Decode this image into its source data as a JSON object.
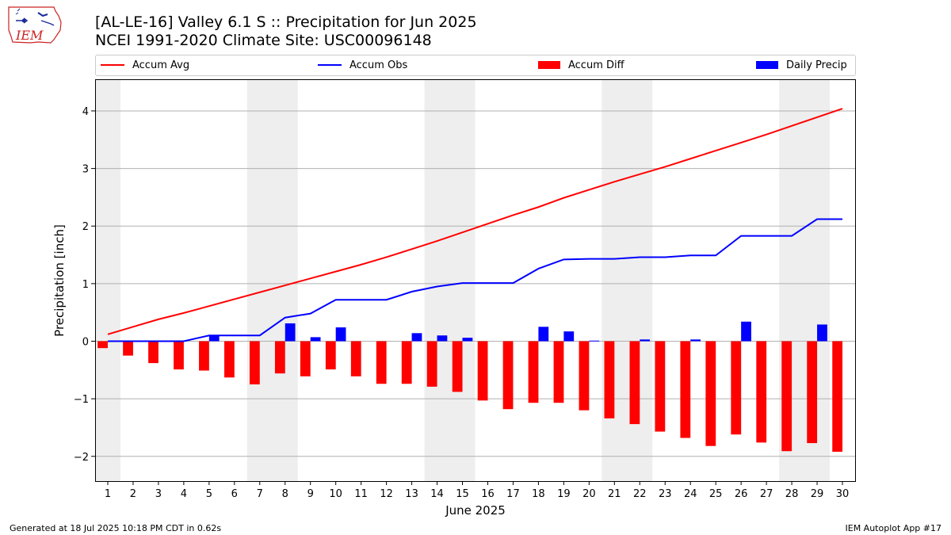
{
  "header": {
    "title_line1": "[AL-LE-16] Valley 6.1 S :: Precipitation for Jun 2025",
    "title_line2": "NCEI 1991-2020 Climate Site: USC00096148",
    "logo_text": "IEM"
  },
  "footer": {
    "left": "Generated at 18 Jul 2025 10:18 PM CDT in 0.62s",
    "right": "IEM Autoplot App #17"
  },
  "legend": [
    {
      "label": "Accum Avg",
      "kind": "line",
      "color": "#ff0000"
    },
    {
      "label": "Accum Obs",
      "kind": "line",
      "color": "#0000ff"
    },
    {
      "label": "Accum Diff",
      "kind": "bar",
      "color": "#ff0000"
    },
    {
      "label": "Daily Precip",
      "kind": "bar",
      "color": "#0000ff"
    }
  ],
  "chart_data": {
    "type": "bar",
    "xlabel": "June 2025",
    "ylabel": "Precipitation [inch]",
    "x": [
      1,
      2,
      3,
      4,
      5,
      6,
      7,
      8,
      9,
      10,
      11,
      12,
      13,
      14,
      15,
      16,
      17,
      18,
      19,
      20,
      21,
      22,
      23,
      24,
      25,
      26,
      27,
      28,
      29,
      30
    ],
    "xlim": [
      0.5,
      30.5
    ],
    "ylim": [
      -2.43,
      4.55
    ],
    "yticks": [
      -2,
      -1,
      0,
      1,
      2,
      3,
      4
    ],
    "ytick_labels": [
      "−2",
      "−1",
      "0",
      "1",
      "2",
      "3",
      "4"
    ],
    "grid": "horizontal",
    "legend_position": "top, above plot",
    "weekend_shading": [
      [
        0.5,
        1.5
      ],
      [
        6.5,
        8.5
      ],
      [
        13.5,
        15.5
      ],
      [
        20.5,
        22.5
      ],
      [
        27.5,
        29.5
      ]
    ],
    "shade_color": "#eeeeee",
    "series": [
      {
        "name": "Accum Avg",
        "type": "line",
        "color": "#ff0000",
        "values": [
          0.12,
          0.25,
          0.38,
          0.49,
          0.61,
          0.73,
          0.85,
          0.97,
          1.09,
          1.21,
          1.33,
          1.46,
          1.6,
          1.74,
          1.89,
          2.04,
          2.19,
          2.33,
          2.49,
          2.63,
          2.77,
          2.9,
          3.03,
          3.17,
          3.31,
          3.45,
          3.59,
          3.74,
          3.89,
          4.04
        ]
      },
      {
        "name": "Accum Obs",
        "type": "line",
        "color": "#0000ff",
        "values": [
          0.0,
          0.0,
          0.0,
          0.0,
          0.1,
          0.1,
          0.1,
          0.41,
          0.48,
          0.72,
          0.72,
          0.72,
          0.86,
          0.95,
          1.01,
          1.01,
          1.01,
          1.26,
          1.42,
          1.43,
          1.43,
          1.46,
          1.46,
          1.49,
          1.49,
          1.83,
          1.83,
          1.83,
          2.12,
          2.12
        ]
      },
      {
        "name": "Accum Diff",
        "type": "bar",
        "color": "#ff0000",
        "values": [
          -0.12,
          -0.25,
          -0.38,
          -0.49,
          -0.51,
          -0.63,
          -0.75,
          -0.56,
          -0.61,
          -0.49,
          -0.61,
          -0.74,
          -0.74,
          -0.79,
          -0.88,
          -1.03,
          -1.18,
          -1.07,
          -1.07,
          -1.2,
          -1.34,
          -1.44,
          -1.57,
          -1.68,
          -1.82,
          -1.62,
          -1.76,
          -1.91,
          -1.77,
          -1.92
        ]
      },
      {
        "name": "Daily Precip",
        "type": "bar",
        "color": "#0000ff",
        "values": [
          0,
          0,
          0,
          0,
          0.1,
          0,
          0,
          0.31,
          0.07,
          0.24,
          0,
          0,
          0.14,
          0.1,
          0.06,
          0,
          0,
          0.25,
          0.17,
          0.01,
          0,
          0.03,
          0,
          0.03,
          0,
          0.34,
          0,
          0,
          0.29,
          0
        ]
      }
    ]
  }
}
